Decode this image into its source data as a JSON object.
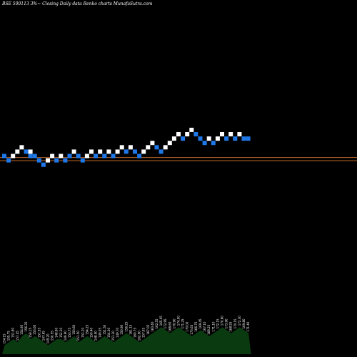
{
  "title": "BSE 500113 3%~  Closing Daily data  Renko  charts MunafaSutra.com",
  "colors": {
    "background": "#000000",
    "brick_up": "#ffffff",
    "brick_down": "#1f78e8",
    "line_upper": "#b8642a",
    "line_lower": "#b8642a",
    "volume_fill": "#0a3a10",
    "volume_text": "#ffffff"
  },
  "chart_data": {
    "type": "renko",
    "bricks": [
      {
        "i": 0,
        "level": 0,
        "dir": "down"
      },
      {
        "i": 1,
        "level": -1,
        "dir": "down"
      },
      {
        "i": 2,
        "level": 0,
        "dir": "up"
      },
      {
        "i": 3,
        "level": 1,
        "dir": "up"
      },
      {
        "i": 4,
        "level": 2,
        "dir": "up"
      },
      {
        "i": 5,
        "level": 1,
        "dir": "down"
      },
      {
        "i": 6,
        "level": 0,
        "dir": "down"
      },
      {
        "i": 6,
        "level": 1,
        "dir": "up"
      },
      {
        "i": 7,
        "level": 0,
        "dir": "down"
      },
      {
        "i": 8,
        "level": -1,
        "dir": "down"
      },
      {
        "i": 9,
        "level": -2,
        "dir": "down"
      },
      {
        "i": 10,
        "level": -1,
        "dir": "up"
      },
      {
        "i": 11,
        "level": 0,
        "dir": "up"
      },
      {
        "i": 12,
        "level": -1,
        "dir": "down"
      },
      {
        "i": 13,
        "level": 0,
        "dir": "up"
      },
      {
        "i": 14,
        "level": -1,
        "dir": "down"
      },
      {
        "i": 15,
        "level": 0,
        "dir": "down"
      },
      {
        "i": 16,
        "level": 1,
        "dir": "up"
      },
      {
        "i": 17,
        "level": 0,
        "dir": "down"
      },
      {
        "i": 18,
        "level": -1,
        "dir": "down"
      },
      {
        "i": 19,
        "level": 0,
        "dir": "up"
      },
      {
        "i": 20,
        "level": 1,
        "dir": "up"
      },
      {
        "i": 21,
        "level": 0,
        "dir": "down"
      },
      {
        "i": 22,
        "level": 1,
        "dir": "up"
      },
      {
        "i": 23,
        "level": 0,
        "dir": "down"
      },
      {
        "i": 24,
        "level": 1,
        "dir": "up"
      },
      {
        "i": 25,
        "level": 0,
        "dir": "down"
      },
      {
        "i": 26,
        "level": 1,
        "dir": "up"
      },
      {
        "i": 27,
        "level": 2,
        "dir": "up"
      },
      {
        "i": 28,
        "level": 1,
        "dir": "down"
      },
      {
        "i": 29,
        "level": 2,
        "dir": "up"
      },
      {
        "i": 30,
        "level": 1,
        "dir": "down"
      },
      {
        "i": 31,
        "level": 0,
        "dir": "down"
      },
      {
        "i": 32,
        "level": 1,
        "dir": "up"
      },
      {
        "i": 33,
        "level": 2,
        "dir": "up"
      },
      {
        "i": 34,
        "level": 3,
        "dir": "up"
      },
      {
        "i": 35,
        "level": 2,
        "dir": "down"
      },
      {
        "i": 36,
        "level": 1,
        "dir": "down"
      },
      {
        "i": 37,
        "level": 2,
        "dir": "up"
      },
      {
        "i": 38,
        "level": 3,
        "dir": "up"
      },
      {
        "i": 39,
        "level": 4,
        "dir": "up"
      },
      {
        "i": 40,
        "level": 5,
        "dir": "up"
      },
      {
        "i": 41,
        "level": 4,
        "dir": "down"
      },
      {
        "i": 42,
        "level": 5,
        "dir": "up"
      },
      {
        "i": 43,
        "level": 6,
        "dir": "up"
      },
      {
        "i": 44,
        "level": 5,
        "dir": "down"
      },
      {
        "i": 45,
        "level": 4,
        "dir": "down"
      },
      {
        "i": 46,
        "level": 3,
        "dir": "down"
      },
      {
        "i": 47,
        "level": 4,
        "dir": "up"
      },
      {
        "i": 48,
        "level": 3,
        "dir": "down"
      },
      {
        "i": 49,
        "level": 4,
        "dir": "up"
      },
      {
        "i": 50,
        "level": 5,
        "dir": "up"
      },
      {
        "i": 51,
        "level": 4,
        "dir": "down"
      },
      {
        "i": 52,
        "level": 5,
        "dir": "up"
      },
      {
        "i": 53,
        "level": 4,
        "dir": "down"
      },
      {
        "i": 54,
        "level": 5,
        "dir": "up"
      },
      {
        "i": 55,
        "level": 4,
        "dir": "down"
      },
      {
        "i": 56,
        "level": 4,
        "dir": "down"
      }
    ],
    "reference_lines": [
      {
        "level": 0.3,
        "label": ""
      },
      {
        "level": -0.4,
        "label": ""
      }
    ],
    "volume": [
      3,
      4,
      5,
      4,
      6,
      7,
      5,
      6,
      5,
      4,
      3,
      4,
      5,
      5,
      4,
      5,
      6,
      4,
      5,
      6,
      5,
      4,
      5,
      6,
      5,
      4,
      5,
      6,
      7,
      6,
      5,
      4,
      5,
      6,
      7,
      8,
      9,
      8,
      7,
      8,
      9,
      8,
      7,
      6,
      7,
      8,
      7,
      6,
      7,
      8,
      9,
      8,
      7,
      8,
      9,
      8,
      7
    ],
    "volume_labels": [
      "154.15",
      "155.75",
      "151.80",
      "157.45",
      "154.95",
      "156.35",
      "158.15",
      "153.60",
      "151.55",
      "147.65",
      "149.20",
      "150.55",
      "148.90",
      "152.30",
      "149.90",
      "153.75",
      "150.60",
      "151.50",
      "152.20",
      "154.25",
      "150.40",
      "148.90",
      "149.05",
      "151.50",
      "154.30",
      "151.20",
      "149.70",
      "150.90",
      "156.25",
      "161.15",
      "160.75",
      "162.90",
      "157.05",
      "167.05",
      "160.40",
      "162.55",
      "165.05",
      "172.95",
      "168.60",
      "170.90",
      "174.00",
      "171.25",
      "170.00",
      "173.65",
      "166.75",
      "169.45",
      "167.10",
      "168.25",
      "171.10",
      "172.15",
      "170.60",
      "173.90",
      "168.55",
      "170.15",
      "172.30",
      "169.80",
      "171.40"
    ]
  }
}
